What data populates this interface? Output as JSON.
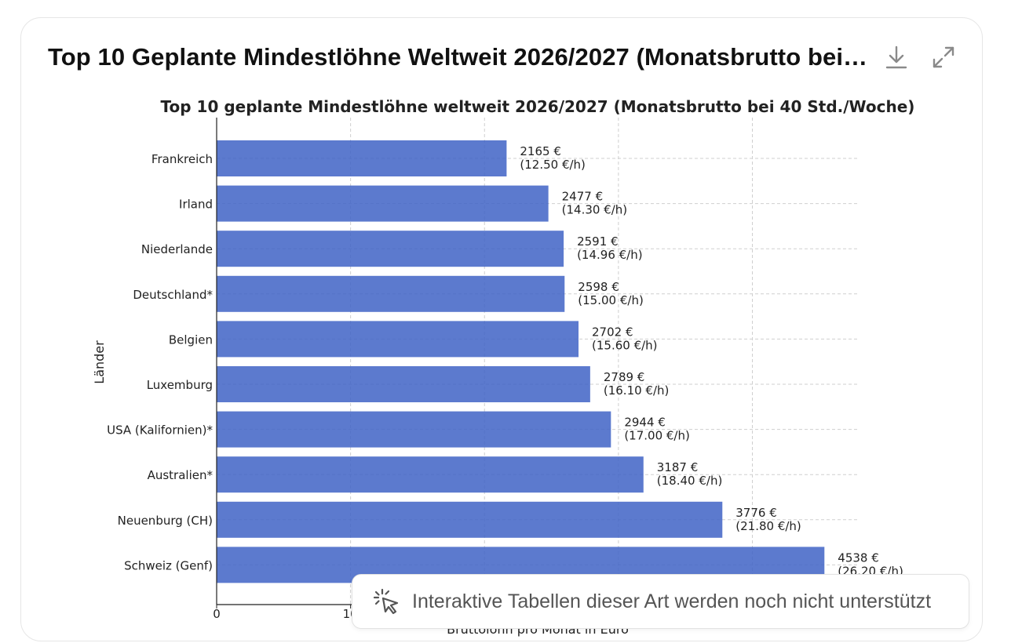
{
  "card": {
    "title": "Top 10 Geplante Mindestlöhne Weltweit 2026/2027 (Monatsbrutto bei 40 Std./Woche)",
    "download_icon": "download-icon",
    "expand_icon": "expand-icon"
  },
  "toast": {
    "icon": "sparkle-cursor-icon",
    "text": "Interaktive Tabellen dieser Art werden noch nicht unterstützt"
  },
  "chart_data": {
    "type": "bar",
    "orientation": "horizontal",
    "title": "Top 10 geplante Mindestlöhne weltweit 2026/2027 (Monatsbrutto bei 40 Std./Woche)",
    "xlabel": "Bruttolohn pro Monat in Euro",
    "ylabel": "Länder",
    "categories": [
      "Frankreich",
      "Irland",
      "Niederlande",
      "Deutschland*",
      "Belgien",
      "Luxemburg",
      "USA (Kalifornien)*",
      "Australien*",
      "Neuenburg (CH)",
      "Schweiz (Genf)"
    ],
    "values": [
      2165,
      2477,
      2591,
      2598,
      2702,
      2789,
      2944,
      3187,
      3776,
      4538
    ],
    "labels": [
      [
        "2165 €",
        "(12.50 €/h)"
      ],
      [
        "2477 €",
        "(14.30 €/h)"
      ],
      [
        "2591 €",
        "(14.96 €/h)"
      ],
      [
        "2598 €",
        "(15.00 €/h)"
      ],
      [
        "2702 €",
        "(15.60 €/h)"
      ],
      [
        "2789 €",
        "(16.10 €/h)"
      ],
      [
        "2944 €",
        "(17.00 €/h)"
      ],
      [
        "3187 €",
        "(18.40 €/h)"
      ],
      [
        "3776 €",
        "(21.80 €/h)"
      ],
      [
        "4538 €",
        "(26.20 €/h)"
      ]
    ],
    "xlim": [
      0,
      4800
    ],
    "x_ticks": [
      0,
      1000,
      2000,
      3000,
      4000
    ],
    "x_tick_labels_visible": [
      "0",
      "10"
    ],
    "bar_color": "#3f63c6",
    "grid": true
  }
}
